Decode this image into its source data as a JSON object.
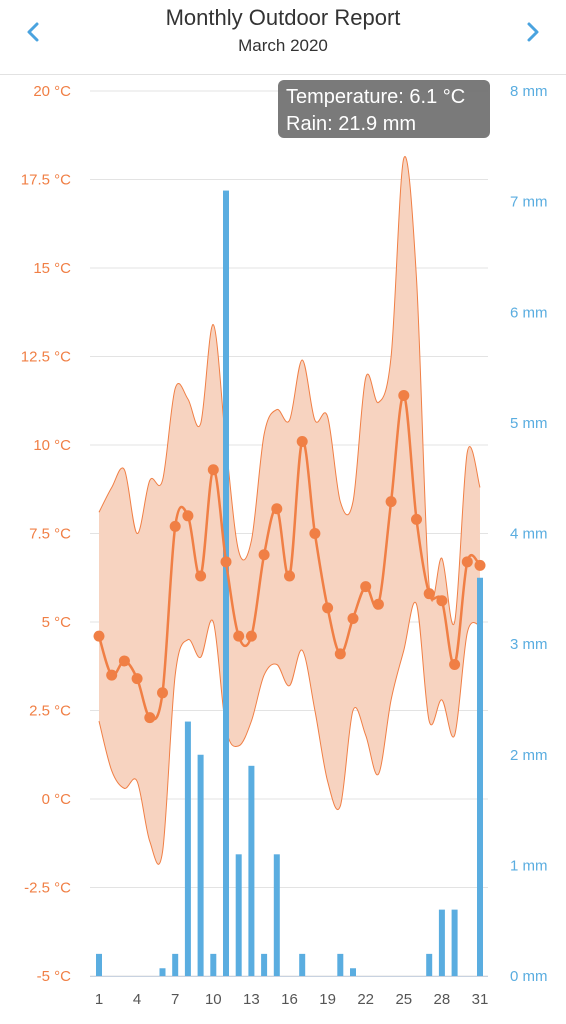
{
  "header": {
    "title": "Monthly Outdoor Report",
    "subtitle": "March 2020",
    "prev_icon": "chevron-left-icon",
    "next_icon": "chevron-right-icon"
  },
  "tooltip": {
    "temperature": "Temperature: 6.1 °C",
    "rain": "Rain: 21.9 mm"
  },
  "colors": {
    "temperature": "#f07f45",
    "range_fill": "#f7d3c0",
    "rain": "#5aade0",
    "grid": "#e3e3e3",
    "header_icon": "#4aa3df"
  },
  "chart_data": {
    "type": "line",
    "x": [
      1,
      2,
      3,
      4,
      5,
      6,
      7,
      8,
      9,
      10,
      11,
      12,
      13,
      14,
      15,
      16,
      17,
      18,
      19,
      20,
      21,
      22,
      23,
      24,
      25,
      26,
      27,
      28,
      29,
      30,
      31
    ],
    "x_ticks": [
      1,
      4,
      7,
      10,
      13,
      16,
      19,
      22,
      25,
      28,
      31
    ],
    "left_axis": {
      "ticks": [
        -5,
        -2.5,
        0,
        2.5,
        5,
        7.5,
        10,
        12.5,
        15,
        17.5,
        20
      ],
      "tick_labels": [
        "-5 °C",
        "-2.5 °C",
        "0 °C",
        "2.5 °C",
        "5 °C",
        "7.5 °C",
        "10 °C",
        "12.5 °C",
        "15 °C",
        "17.5 °C",
        "20 °C"
      ],
      "ylim": [
        -5,
        20
      ]
    },
    "right_axis": {
      "ticks": [
        0,
        1,
        2,
        3,
        4,
        5,
        6,
        7,
        8
      ],
      "tick_labels": [
        "0 mm",
        "1 mm",
        "2 mm",
        "3 mm",
        "4 mm",
        "5 mm",
        "6 mm",
        "7 mm",
        "8 mm"
      ],
      "ylim": [
        0,
        8
      ]
    },
    "series": [
      {
        "type": "column",
        "axis": "right",
        "values": [
          0.2,
          0,
          0,
          0,
          0,
          0.07,
          0.2,
          2.3,
          2.0,
          0.2,
          7.1,
          1.1,
          1.9,
          0.2,
          1.1,
          0,
          0.2,
          0,
          0,
          0.2,
          0.07,
          0,
          0,
          0,
          0,
          0,
          0.2,
          0.6,
          0.6,
          0,
          3.6
        ]
      },
      {
        "type": "arearange",
        "axis": "left",
        "low": [
          2.2,
          0.8,
          0.3,
          0.5,
          -1.2,
          -1.5,
          3.5,
          4.5,
          4.0,
          5.0,
          2.0,
          1.5,
          2.2,
          3.5,
          3.8,
          3.2,
          4.2,
          2.5,
          0.5,
          -0.2,
          2.5,
          1.8,
          0.7,
          2.8,
          4.2,
          5.5,
          2.2,
          2.8,
          1.8,
          4.7,
          4.9
        ],
        "high": [
          8.1,
          8.8,
          9.3,
          7.5,
          9.0,
          9.0,
          11.6,
          11.3,
          10.6,
          13.4,
          10.0,
          7.0,
          7.3,
          10.3,
          11.0,
          10.7,
          12.4,
          10.7,
          10.8,
          8.4,
          8.4,
          11.9,
          11.2,
          12.5,
          18.1,
          14.7,
          6.0,
          6.8,
          5.0,
          9.8,
          8.8
        ]
      },
      {
        "type": "spline",
        "axis": "left",
        "values": [
          4.6,
          3.5,
          3.9,
          3.4,
          2.3,
          3.0,
          7.7,
          8.0,
          6.3,
          9.3,
          6.7,
          4.6,
          4.6,
          6.9,
          8.2,
          6.3,
          10.1,
          7.5,
          5.4,
          4.1,
          5.1,
          6.0,
          5.5,
          8.4,
          11.4,
          7.9,
          5.8,
          5.6,
          3.8,
          6.7,
          6.6
        ]
      }
    ]
  }
}
